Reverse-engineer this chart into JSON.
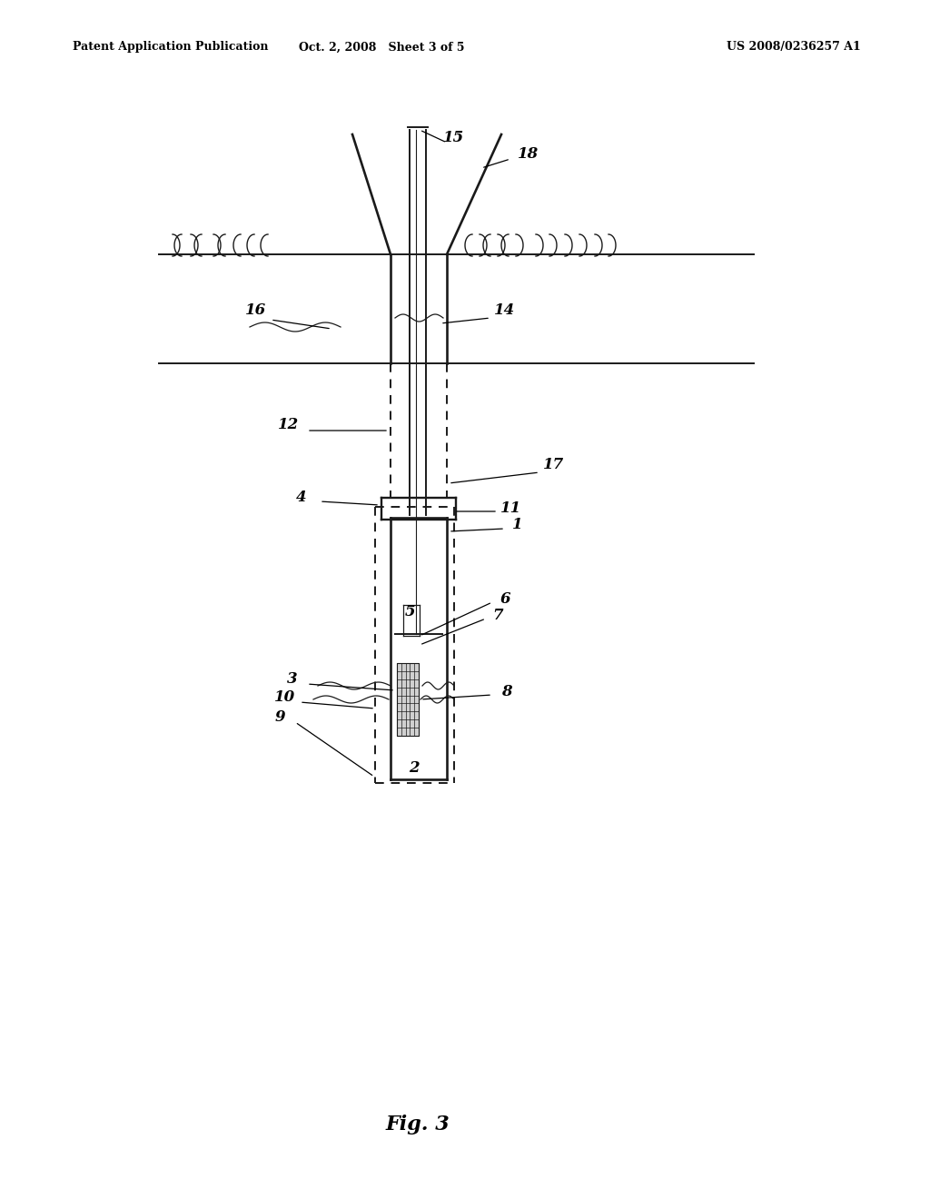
{
  "header_left": "Patent Application Publication",
  "header_center": "Oct. 2, 2008   Sheet 3 of 5",
  "header_right": "US 2008/0236257 A1",
  "fig_label": "Fig. 3",
  "bg_color": "#ffffff",
  "lc": "#1a1a1a"
}
